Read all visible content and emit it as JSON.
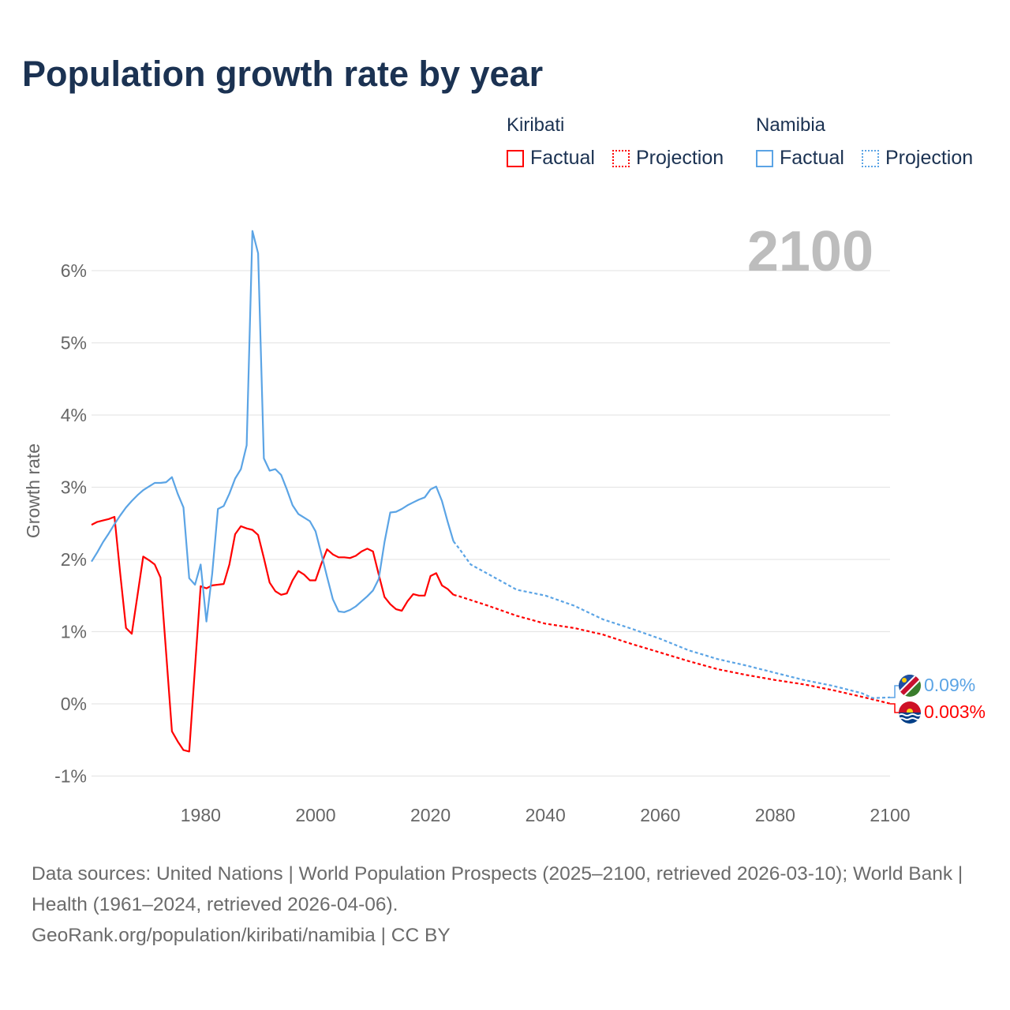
{
  "title": "Population growth rate by year",
  "legend": {
    "groups": [
      {
        "name": "Kiribati",
        "color": "#ff0000",
        "factual_label": "Factual",
        "projection_label": "Projection"
      },
      {
        "name": "Namibia",
        "color": "#5ba4e5",
        "factual_label": "Factual",
        "projection_label": "Projection"
      }
    ]
  },
  "year_label": "2100",
  "end_labels": {
    "namibia": "0.09%",
    "kiribati": "0.003%"
  },
  "footer": {
    "sources": "Data sources: United Nations | World Population Prospects (2025–2100, retrieved 2026-03-10); World Bank | Health (1961–2024, retrieved 2026-04-06).",
    "credit": "GeoRank.org/population/kiribati/namibia | CC BY"
  },
  "chart_data": {
    "type": "line",
    "title": "Population growth rate by year",
    "xlabel": "",
    "ylabel": "Growth rate",
    "xlim": [
      1961,
      2100
    ],
    "ylim": [
      -1.2,
      6.6
    ],
    "xticks": [
      1980,
      2000,
      2020,
      2040,
      2060,
      2080,
      2100
    ],
    "xtick_labels": [
      "1980",
      "2000",
      "2020",
      "2040",
      "2060",
      "2080",
      "2100"
    ],
    "yticks": [
      -1,
      0,
      1,
      2,
      3,
      4,
      5,
      6
    ],
    "ytick_labels": [
      "-1%",
      "0%",
      "1%",
      "2%",
      "3%",
      "4%",
      "5%",
      "6%"
    ],
    "grid": true,
    "legend_position": "top-right",
    "series": [
      {
        "name": "Kiribati Factual",
        "color": "#ff0000",
        "dashed": false,
        "x_start": 1961,
        "values": [
          2.48,
          2.52,
          2.54,
          2.56,
          2.59,
          1.8,
          1.05,
          0.97,
          1.5,
          2.04,
          1.99,
          1.93,
          1.75,
          0.7,
          -0.38,
          -0.52,
          -0.64,
          -0.66,
          0.5,
          1.63,
          1.6,
          1.64,
          1.65,
          1.66,
          1.93,
          2.35,
          2.46,
          2.43,
          2.41,
          2.34,
          2.02,
          1.68,
          1.56,
          1.51,
          1.53,
          1.71,
          1.84,
          1.79,
          1.71,
          1.71,
          1.94,
          2.14,
          2.07,
          2.03,
          2.03,
          2.02,
          2.05,
          2.11,
          2.15,
          2.11,
          1.79,
          1.48,
          1.38,
          1.31,
          1.29,
          1.42,
          1.52,
          1.5,
          1.5,
          1.77,
          1.81,
          1.64,
          1.59,
          1.51
        ]
      },
      {
        "name": "Kiribati Projection",
        "color": "#ff0000",
        "dashed": true,
        "x": [
          2024,
          2025,
          2030,
          2035,
          2040,
          2045,
          2050,
          2055,
          2060,
          2065,
          2070,
          2075,
          2080,
          2085,
          2090,
          2095,
          2100
        ],
        "values": [
          1.51,
          1.49,
          1.36,
          1.22,
          1.11,
          1.05,
          0.96,
          0.83,
          0.71,
          0.59,
          0.48,
          0.4,
          0.33,
          0.27,
          0.19,
          0.1,
          0.003
        ]
      },
      {
        "name": "Namibia Factual",
        "color": "#5ba4e5",
        "dashed": false,
        "x_start": 1961,
        "values": [
          1.97,
          2.1,
          2.24,
          2.36,
          2.49,
          2.61,
          2.72,
          2.81,
          2.89,
          2.96,
          3.01,
          3.06,
          3.06,
          3.07,
          3.14,
          2.91,
          2.72,
          1.74,
          1.65,
          1.93,
          1.14,
          1.8,
          2.7,
          2.74,
          2.91,
          3.12,
          3.25,
          3.58,
          6.55,
          6.24,
          3.4,
          3.23,
          3.25,
          3.17,
          2.97,
          2.75,
          2.63,
          2.58,
          2.53,
          2.39,
          2.08,
          1.76,
          1.45,
          1.28,
          1.27,
          1.3,
          1.35,
          1.42,
          1.49,
          1.57,
          1.73,
          2.24,
          2.65,
          2.66,
          2.7,
          2.75,
          2.79,
          2.83,
          2.86,
          2.97,
          3.01,
          2.81,
          2.52,
          2.25
        ]
      },
      {
        "name": "Namibia Projection",
        "color": "#5ba4e5",
        "dashed": true,
        "x": [
          2024,
          2025,
          2027,
          2030,
          2035,
          2040,
          2045,
          2050,
          2055,
          2060,
          2065,
          2070,
          2075,
          2080,
          2085,
          2090,
          2095,
          2097,
          2100
        ],
        "values": [
          2.25,
          2.15,
          1.93,
          1.8,
          1.58,
          1.5,
          1.36,
          1.17,
          1.04,
          0.9,
          0.74,
          0.62,
          0.53,
          0.43,
          0.33,
          0.25,
          0.15,
          0.08,
          0.09
        ]
      }
    ]
  }
}
